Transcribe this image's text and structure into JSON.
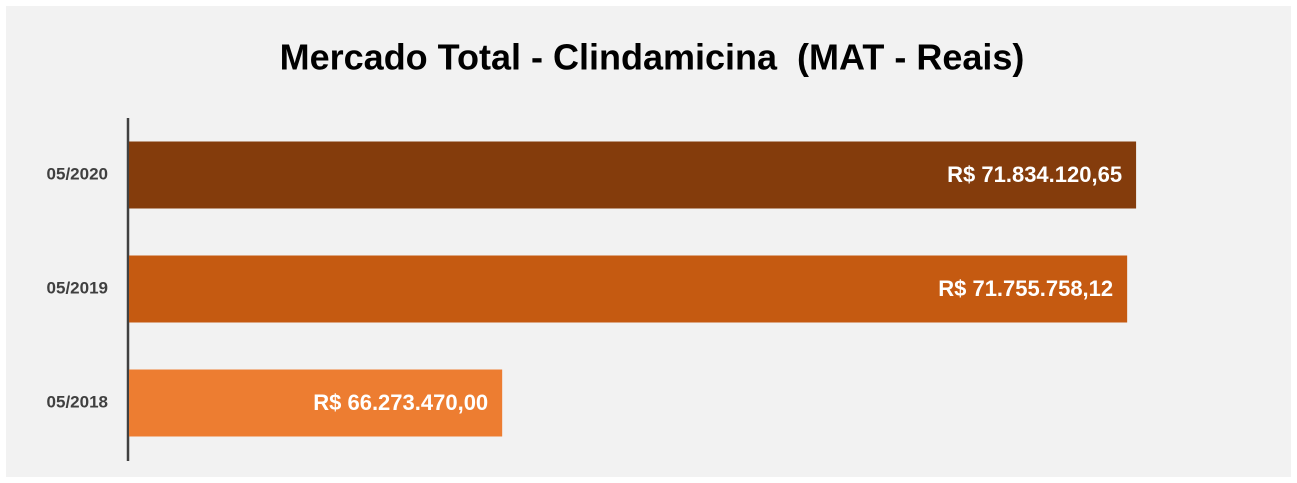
{
  "chart_data": {
    "type": "hbar",
    "title": "Mercado Total - Clindamicina  (MAT - Reais)",
    "categories": [
      "05/2020",
      "05/2019",
      "05/2018"
    ],
    "values": [
      71834120.65,
      71755758.12,
      66273470.0
    ],
    "value_labels": [
      "R$ 71.834.120,65",
      "R$ 71.755.758,12",
      "R$ 66.273.470,00"
    ],
    "colors": [
      "#843c0c",
      "#c55a11",
      "#ed7d31"
    ],
    "xlim": [
      63000000,
      72000000
    ]
  }
}
